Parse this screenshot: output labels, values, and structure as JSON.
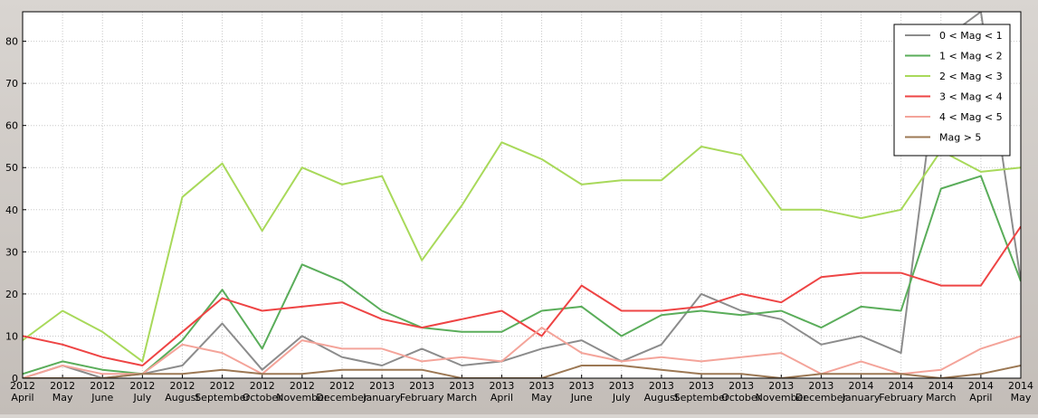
{
  "chart_data": {
    "type": "line",
    "x_top": [
      "2012",
      "2012",
      "2012",
      "2012",
      "2012",
      "2012",
      "2012",
      "2012",
      "2012",
      "2013",
      "2013",
      "2013",
      "2013",
      "2013",
      "2013",
      "2013",
      "2013",
      "2013",
      "2013",
      "2013",
      "2013",
      "2014",
      "2014",
      "2014",
      "2014",
      "2014"
    ],
    "x_bottom": [
      "April",
      "May",
      "June",
      "July",
      "August",
      "September",
      "October",
      "November",
      "December",
      "January",
      "February",
      "March",
      "April",
      "May",
      "June",
      "July",
      "August",
      "September",
      "October",
      "November",
      "December",
      "January",
      "February",
      "March",
      "April",
      "May"
    ],
    "ylim": [
      0,
      87
    ],
    "yticks": [
      0,
      10,
      20,
      30,
      40,
      50,
      60,
      70,
      80
    ],
    "grid": true,
    "legend_position": "top-right",
    "series": [
      {
        "name": "0 < Mag < 1",
        "color": "#8c8c8c",
        "values": [
          0,
          3,
          0,
          1,
          3,
          13,
          2,
          10,
          5,
          3,
          7,
          3,
          4,
          7,
          9,
          4,
          8,
          20,
          16,
          14,
          8,
          10,
          6,
          80,
          87,
          23
        ]
      },
      {
        "name": "1 < Mag < 2",
        "color": "#5aad5a",
        "values": [
          1,
          4,
          2,
          1,
          9,
          21,
          7,
          27,
          23,
          16,
          12,
          11,
          11,
          16,
          17,
          10,
          15,
          16,
          15,
          16,
          12,
          17,
          16,
          45,
          48,
          23
        ]
      },
      {
        "name": "2 < Mag < 3",
        "color": "#a8d95a",
        "values": [
          9,
          16,
          11,
          4,
          43,
          51,
          35,
          50,
          46,
          48,
          28,
          41,
          56,
          52,
          46,
          47,
          47,
          55,
          53,
          40,
          40,
          38,
          40,
          54,
          49,
          50
        ]
      },
      {
        "name": "3 < Mag < 4",
        "color": "#ee4444",
        "values": [
          10,
          8,
          5,
          3,
          11,
          19,
          16,
          17,
          18,
          14,
          12,
          14,
          16,
          10,
          22,
          16,
          16,
          17,
          20,
          18,
          24,
          25,
          25,
          22,
          22,
          36
        ]
      },
      {
        "name": "4 < Mag < 5",
        "color": "#f4a49a",
        "values": [
          0,
          3,
          1,
          1,
          8,
          6,
          1,
          9,
          7,
          7,
          4,
          5,
          4,
          12,
          6,
          4,
          5,
          4,
          5,
          6,
          1,
          4,
          1,
          2,
          7,
          10
        ]
      },
      {
        "name": "Mag > 5",
        "color": "#9c7854",
        "values": [
          0,
          0,
          0,
          1,
          1,
          2,
          1,
          1,
          2,
          2,
          2,
          0,
          0,
          0,
          3,
          3,
          2,
          1,
          1,
          0,
          1,
          1,
          1,
          0,
          1,
          3
        ]
      }
    ]
  }
}
